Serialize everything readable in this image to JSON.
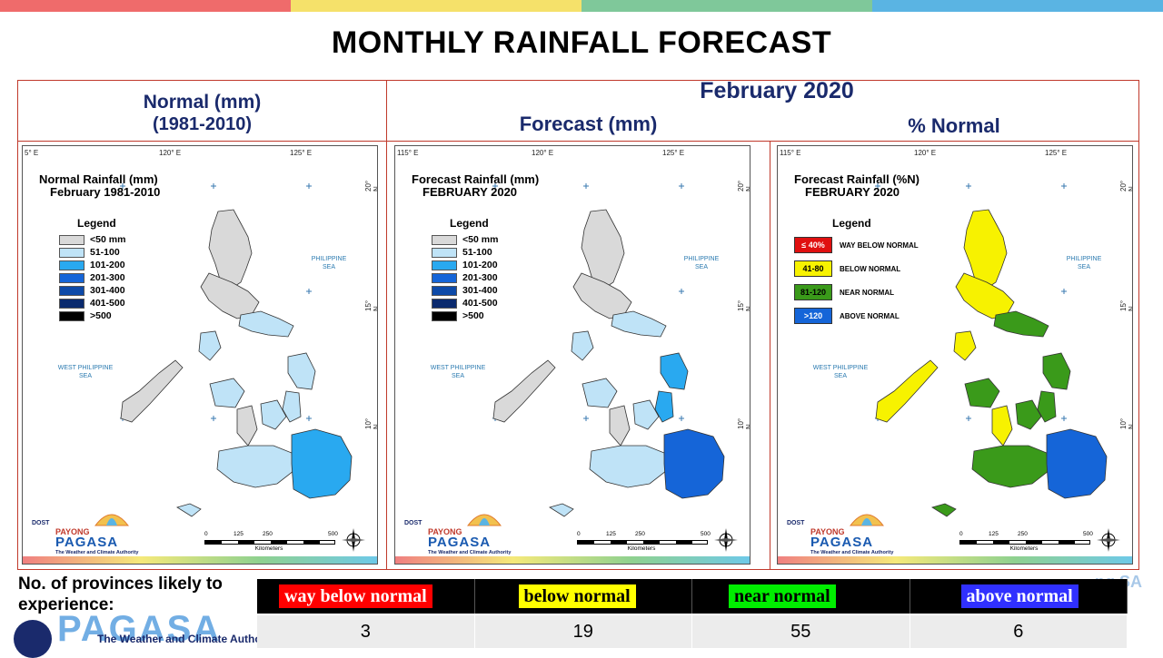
{
  "title": "MONTHLY RAINFALL FORECAST",
  "topbar_colors": [
    "#ef6b6b",
    "#f5e16a",
    "#7fc89a",
    "#5ab4e3"
  ],
  "headers": {
    "normal_line1": "Normal (mm)",
    "normal_line2": "(1981-2010)",
    "month": "February 2020",
    "forecast": "Forecast (mm)",
    "percent": "% Normal"
  },
  "panels": [
    {
      "title_line1": "Normal Rainfall (mm)",
      "title_line2": "February 1981-2010",
      "legend_title": "Legend",
      "legend": [
        {
          "label": "<50 mm",
          "color": "#d9d9d9"
        },
        {
          "label": "51-100",
          "color": "#bfe3f7"
        },
        {
          "label": "101-200",
          "color": "#29a9f0"
        },
        {
          "label": "201-300",
          "color": "#1565d8"
        },
        {
          "label": "301-400",
          "color": "#0d4aa8"
        },
        {
          "label": "401-500",
          "color": "#0a2a6e"
        },
        {
          "label": ">500",
          "color": "#000000"
        }
      ],
      "coords_top": [
        "5° E",
        "120° E",
        "125° E"
      ],
      "coords_side": [
        "20° N",
        "15° N",
        "10° N"
      ]
    },
    {
      "title_line1": "Forecast Rainfall (mm)",
      "title_line2": "FEBRUARY 2020",
      "legend_title": "Legend",
      "legend": [
        {
          "label": "<50 mm",
          "color": "#d9d9d9"
        },
        {
          "label": "51-100",
          "color": "#bfe3f7"
        },
        {
          "label": "101-200",
          "color": "#29a9f0"
        },
        {
          "label": "201-300",
          "color": "#1565d8"
        },
        {
          "label": "301-400",
          "color": "#0d4aa8"
        },
        {
          "label": "401-500",
          "color": "#0a2a6e"
        },
        {
          "label": ">500",
          "color": "#000000"
        }
      ],
      "coords_top": [
        "115° E",
        "120° E",
        "125° E"
      ],
      "coords_side": [
        "20° N",
        "15° N",
        "10° N"
      ]
    },
    {
      "title_line1": "Forecast Rainfall (%N)",
      "title_line2": "FEBRUARY 2020",
      "legend_title": "Legend",
      "legend": [
        {
          "swatch": "≤ 40%",
          "label": "WAY BELOW NORMAL",
          "color": "#e01010",
          "text_color": "#ffffff"
        },
        {
          "swatch": "41-80",
          "label": "BELOW NORMAL",
          "color": "#f7f200",
          "text_color": "#000000"
        },
        {
          "swatch": "81-120",
          "label": "NEAR NORMAL",
          "color": "#3a9a1a",
          "text_color": "#000000"
        },
        {
          "swatch": ">120",
          "label": "ABOVE NORMAL",
          "color": "#1565d8",
          "text_color": "#ffffff"
        }
      ],
      "coords_top": [
        "115° E",
        "120° E",
        "125° E"
      ],
      "coords_side": [
        "20° N",
        "15° N",
        "10° N"
      ]
    }
  ],
  "sea_labels": {
    "east_line1": "PHILIPPINE",
    "east_line2": "SEA",
    "west_line1": "WEST PHILIPPINE",
    "west_line2": "SEA"
  },
  "logo": {
    "dost": "DOST",
    "payong": "PAYONG",
    "pagasa": "PAGASA",
    "tagline": "The Weather and Climate Authority"
  },
  "scale": {
    "ticks": [
      "0",
      "125",
      "250",
      "500"
    ],
    "unit": "Kilometers"
  },
  "provinces": {
    "label": "No. of provinces likely  to experience:",
    "categories": [
      {
        "label": "way below normal",
        "count": "3",
        "bg": "#ff0000",
        "fg": "#ffffff"
      },
      {
        "label": "below normal",
        "count": "19",
        "bg": "#ffff00",
        "fg": "#000000"
      },
      {
        "label": "near normal",
        "count": "55",
        "bg": "#00ee00",
        "fg": "#000000"
      },
      {
        "label": "above normal",
        "count": "6",
        "bg": "#3030ff",
        "fg": "#ffffff"
      }
    ]
  },
  "watermark": {
    "big": "PAGASA",
    "tagline": "The Weather and Climate Autho",
    "right": "ng SA"
  }
}
